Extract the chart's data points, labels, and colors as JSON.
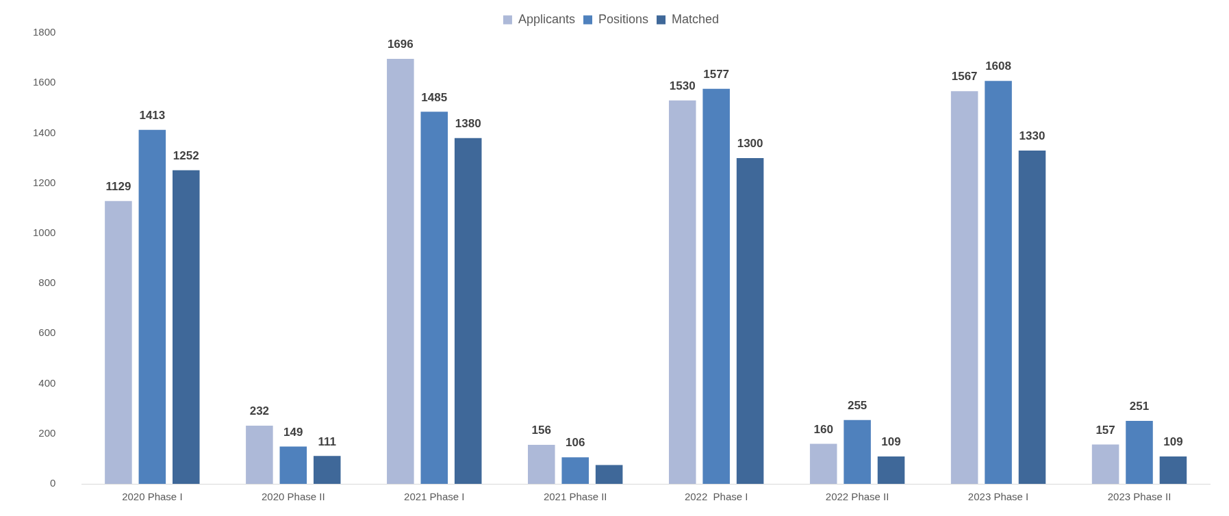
{
  "chart_data": {
    "type": "bar",
    "categories": [
      "2020 Phase I",
      "2020 Phase II",
      "2021 Phase I",
      "2021 Phase II",
      "2022  Phase I",
      "2022 Phase II",
      "2023 Phase I",
      "2023 Phase II"
    ],
    "series": [
      {
        "name": "Applicants",
        "color": "#adb9d8",
        "values": [
          1129,
          232,
          1696,
          156,
          1530,
          160,
          1567,
          157
        ],
        "value_labels": [
          "1129",
          "232",
          "1696",
          "156",
          "1530",
          "160",
          "1567",
          "157"
        ]
      },
      {
        "name": "Positions",
        "color": "#4f81bd",
        "values": [
          1413,
          149,
          1485,
          106,
          1577,
          255,
          1608,
          251
        ],
        "value_labels": [
          "1413",
          "149",
          "1485",
          "106",
          "1577",
          "255",
          "1608",
          "251"
        ]
      },
      {
        "name": "Matched",
        "color": "#3f6899",
        "values": [
          1252,
          111,
          1380,
          75,
          1300,
          109,
          1330,
          109
        ],
        "value_labels": [
          "1252",
          "111",
          "1380",
          null,
          "1300",
          "109",
          "1330",
          "109"
        ]
      }
    ],
    "ylim": [
      0,
      1800
    ],
    "yticks": [
      0,
      200,
      400,
      600,
      800,
      1000,
      1200,
      1400,
      1600,
      1800
    ],
    "legend": "top"
  }
}
